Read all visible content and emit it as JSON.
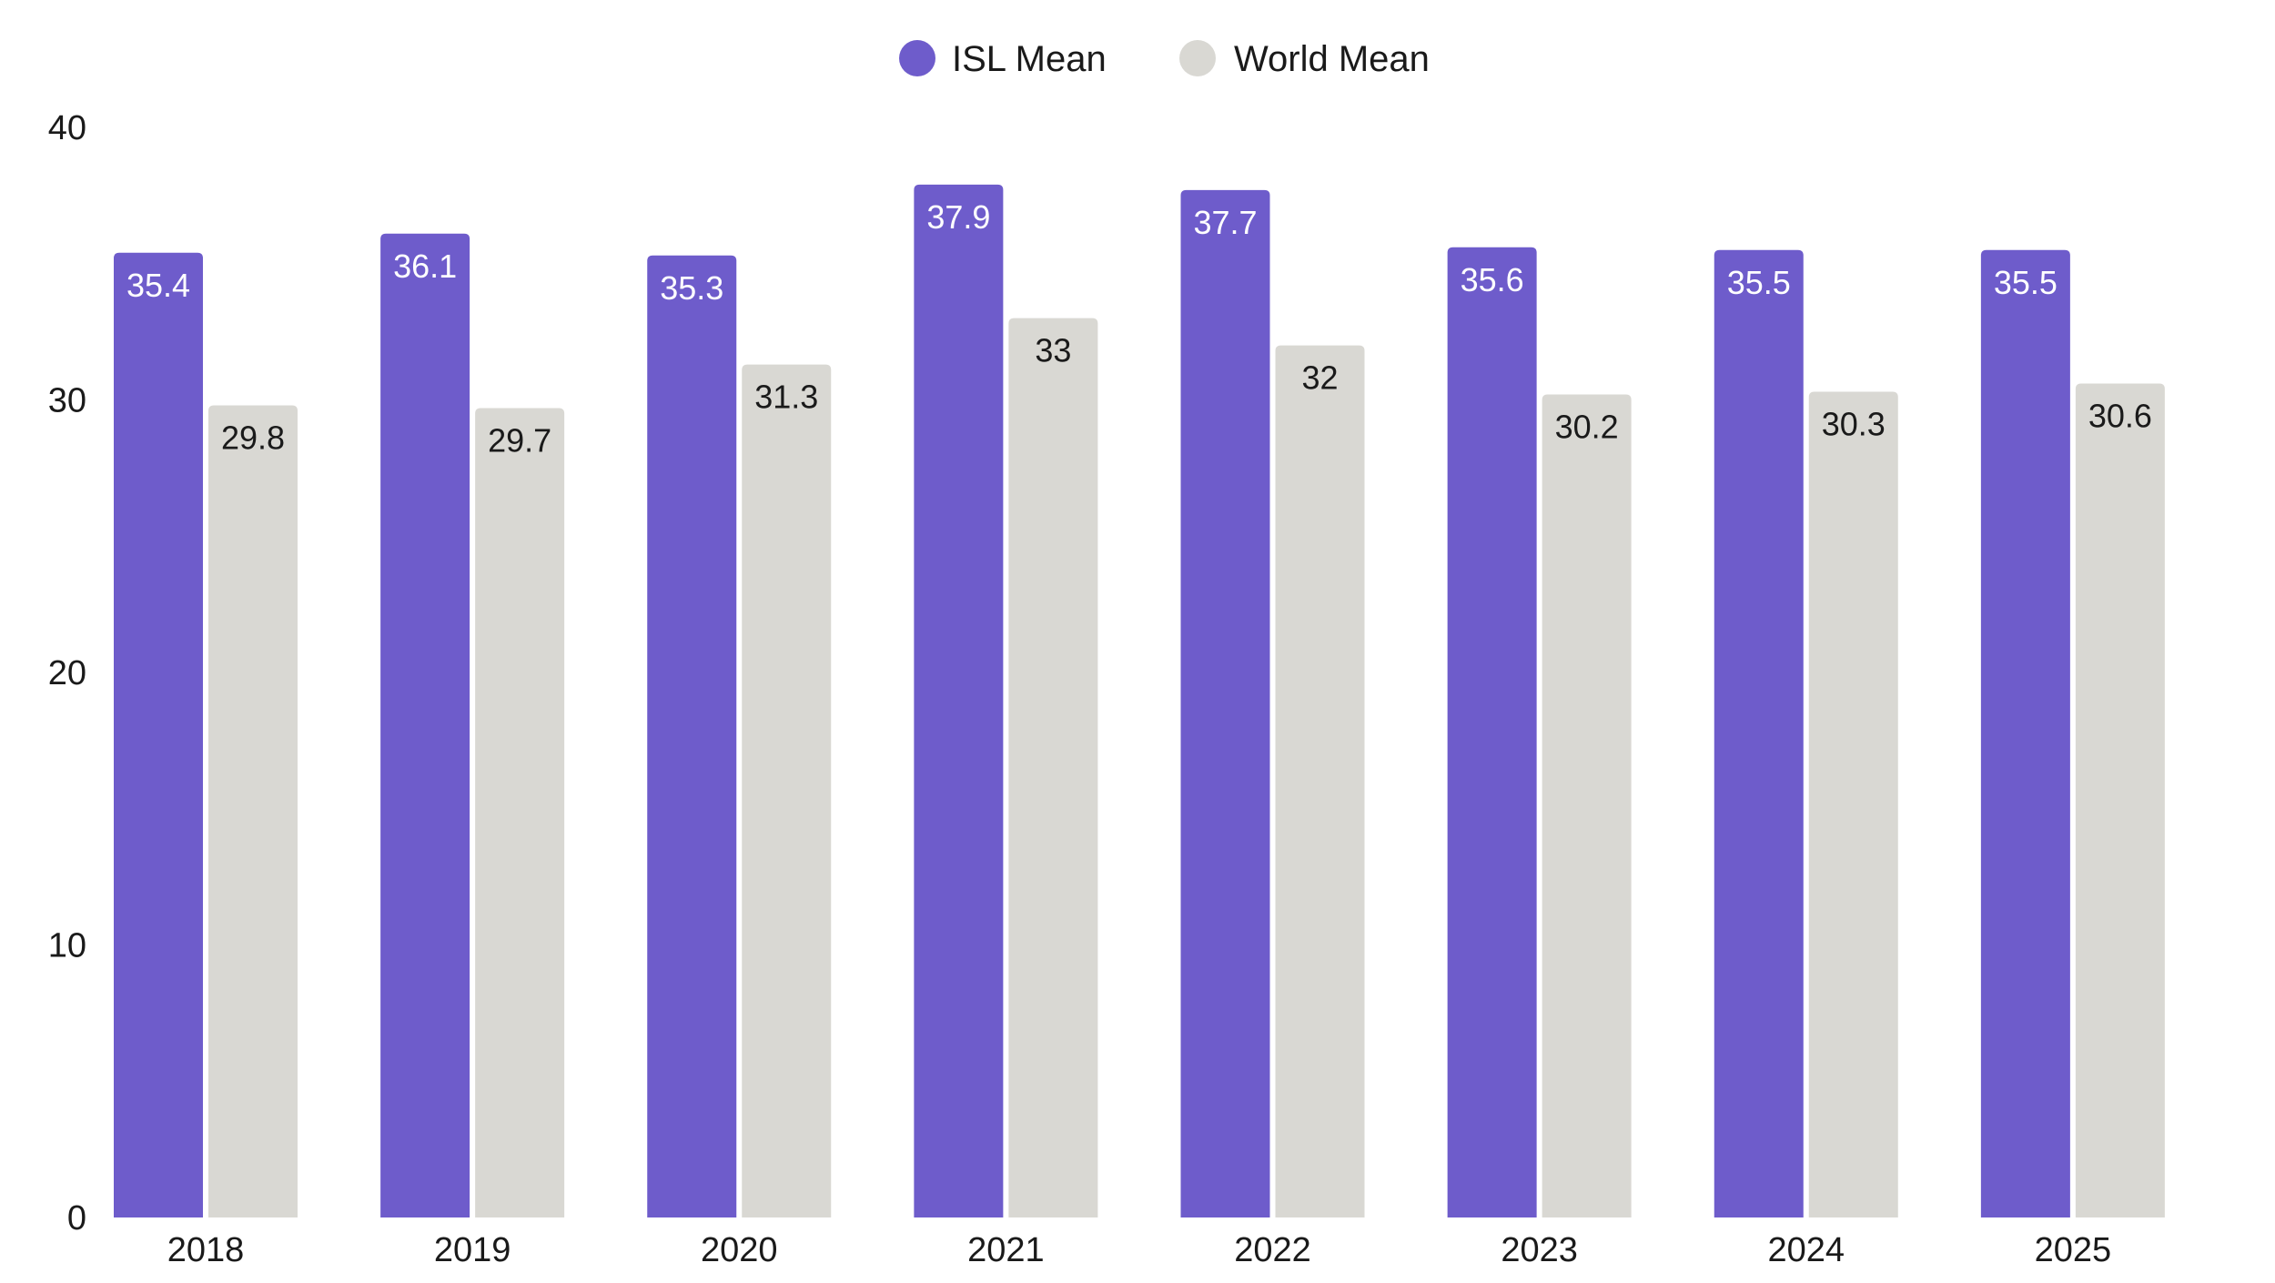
{
  "chart_data": {
    "type": "bar",
    "title": "",
    "xlabel": "",
    "ylabel": "",
    "ylim": [
      0,
      40
    ],
    "yticks": [
      0,
      10,
      20,
      30,
      40
    ],
    "grid": false,
    "legend_position": "top-center",
    "categories": [
      "2018",
      "2019",
      "2020",
      "2021",
      "2022",
      "2023",
      "2024",
      "2025"
    ],
    "series": [
      {
        "name": "ISL Mean",
        "color": "#6e5ccb",
        "label_color": "#ffffff",
        "values": [
          35.4,
          36.1,
          35.3,
          37.9,
          37.7,
          35.6,
          35.5,
          35.5
        ],
        "labels": [
          "35.4",
          "36.1",
          "35.3",
          "37.9",
          "37.7",
          "35.6",
          "35.5",
          "35.5"
        ]
      },
      {
        "name": "World Mean",
        "color": "#d9d8d3",
        "label_color": "#1a1a1a",
        "values": [
          29.8,
          29.7,
          31.3,
          33,
          32,
          30.2,
          30.3,
          30.6
        ],
        "labels": [
          "29.8",
          "29.7",
          "31.3",
          "33",
          "32",
          "30.2",
          "30.3",
          "30.6"
        ]
      }
    ]
  }
}
